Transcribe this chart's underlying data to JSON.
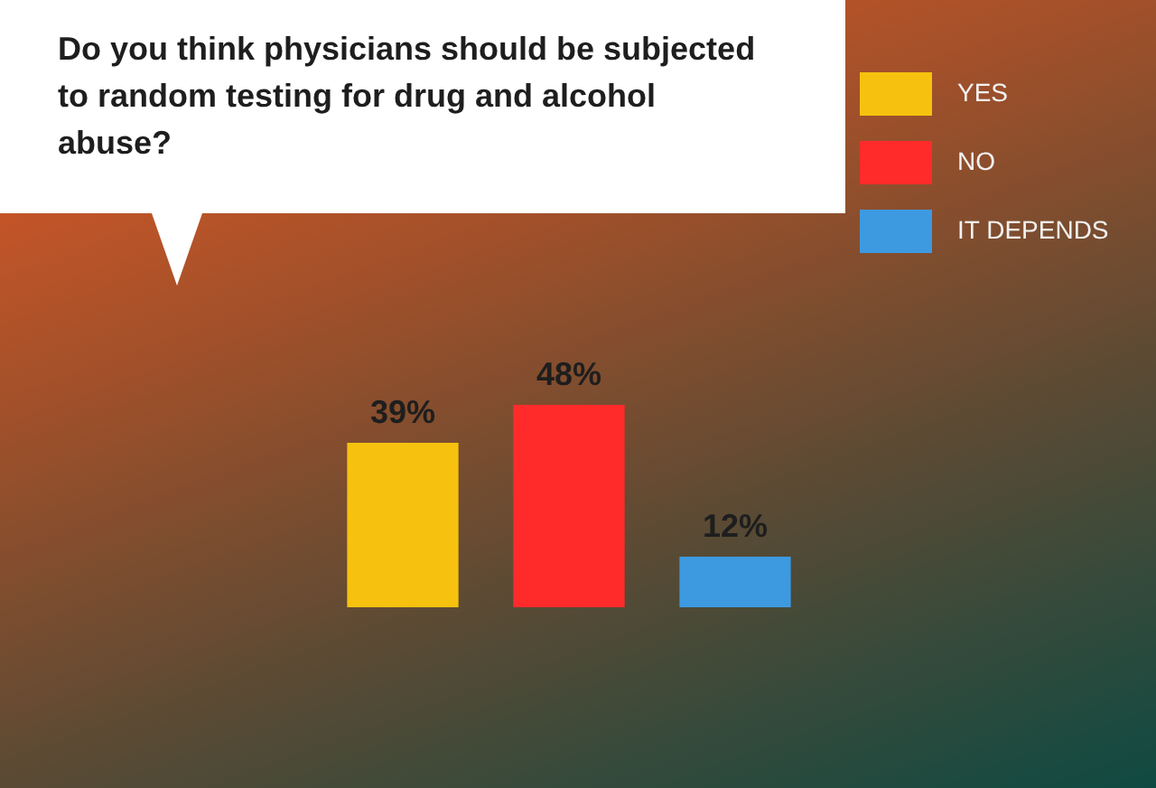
{
  "chart_data": {
    "type": "bar",
    "title": "Do you think physicians should be subjected to random testing for drug and alcohol abuse?",
    "categories": [
      null,
      null,
      null
    ],
    "stacked": true,
    "series": [
      {
        "name": "YES",
        "color": "#f6c20f",
        "values": [
          39,
          null,
          null
        ],
        "value_labels": [
          "39%",
          null,
          null
        ]
      },
      {
        "name": "NO",
        "color": "#ff2b2b",
        "values": [
          null,
          48,
          null
        ],
        "value_labels": [
          null,
          "48%",
          null
        ]
      },
      {
        "name": "IT DEPENDS",
        "color": "#3d9ae0",
        "values": [
          null,
          null,
          12
        ],
        "value_labels": [
          null,
          null,
          "12%"
        ]
      }
    ],
    "legend": "top right"
  }
}
